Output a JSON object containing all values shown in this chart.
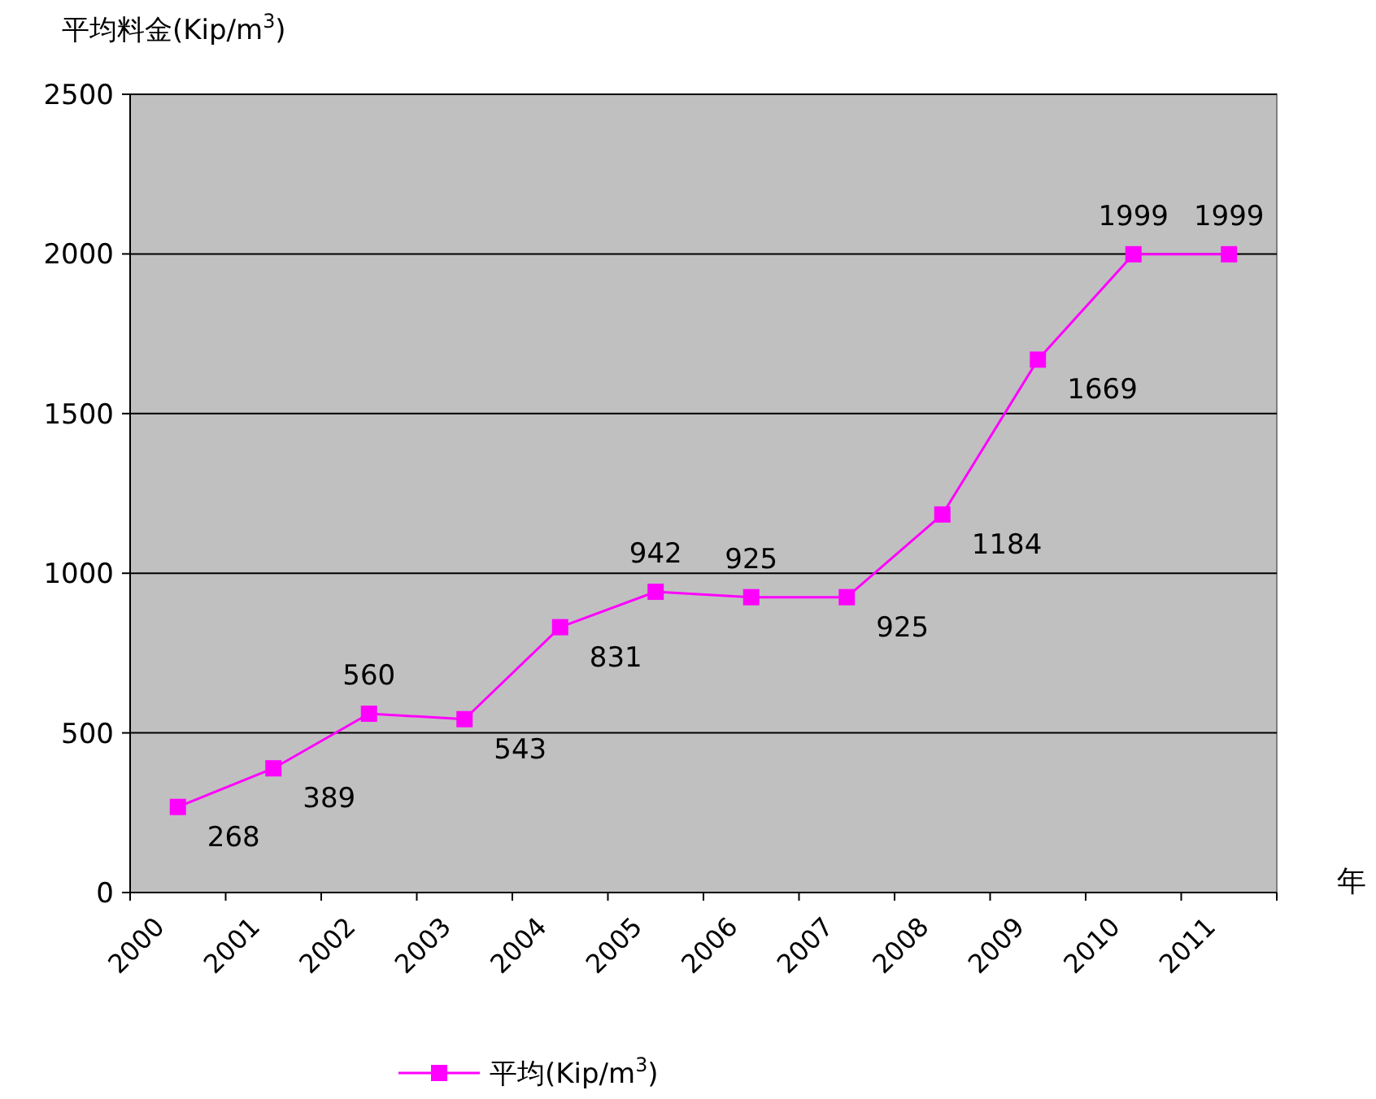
{
  "chart_data": {
    "type": "line",
    "ylabel": "平均料金(Kip/m$^{3}$)",
    "xlabel": "年",
    "categories": [
      "2000",
      "2001",
      "2002",
      "2003",
      "2004",
      "2005",
      "2006",
      "2007",
      "2008",
      "2009",
      "2010",
      "2011"
    ],
    "series": [
      {
        "name": "平均(Kip/m$^{3}$)",
        "color": "#ff00ff",
        "values": [
          268,
          389,
          560,
          543,
          831,
          942,
          925,
          925,
          1184,
          1669,
          1999,
          1999
        ]
      }
    ],
    "ylim": [
      0,
      2500
    ],
    "yticks": [
      0,
      500,
      1000,
      1500,
      2000,
      2500
    ],
    "grid": "y",
    "legend": "bottom",
    "marker": "square",
    "data_labels": true
  }
}
